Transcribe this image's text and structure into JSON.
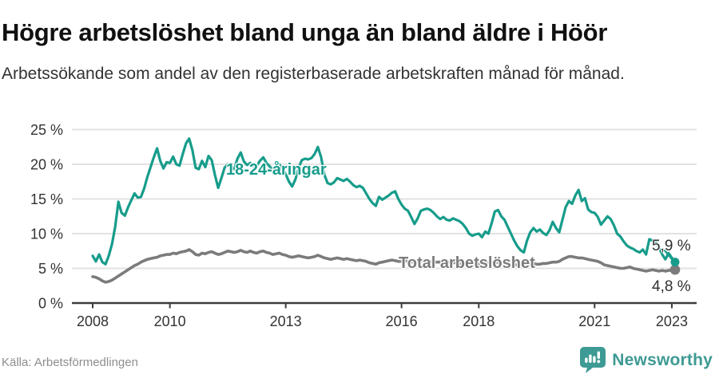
{
  "header": {
    "title": "Högre arbetslöshet bland unga än bland äldre i Höör",
    "subtitle": "Arbetssökande som andel av den registerbaserade arbetskraften månad för månad."
  },
  "chart_data": {
    "type": "line",
    "title": "Högre arbetslöshet bland unga än bland äldre i Höör",
    "xlabel": "",
    "ylabel": "",
    "unit": "%",
    "grid": true,
    "legend_position": "inline-labels",
    "ylim": [
      0,
      25
    ],
    "yticks": [
      {
        "value": 0,
        "label": "0 %"
      },
      {
        "value": 5,
        "label": "5 %"
      },
      {
        "value": 10,
        "label": "10 %"
      },
      {
        "value": 15,
        "label": "15 %"
      },
      {
        "value": 20,
        "label": "20 %"
      },
      {
        "value": 25,
        "label": "25 %"
      }
    ],
    "xticks": [
      {
        "year": 2008,
        "label": "2008"
      },
      {
        "year": 2010,
        "label": "2010"
      },
      {
        "year": 2013,
        "label": "2013"
      },
      {
        "year": 2016,
        "label": "2016"
      },
      {
        "year": 2018,
        "label": "2018"
      },
      {
        "year": 2021,
        "label": "2021"
      },
      {
        "year": 2023,
        "label": "2023"
      }
    ],
    "x_start_year": 2008,
    "x_step_months": 1,
    "series": [
      {
        "name": "18-24-åringar",
        "label_text": "18-24-åringar",
        "color": "#179C8B",
        "end_label": "5,9 %",
        "end_value": 5.9,
        "values": [
          6.8,
          6.0,
          7.0,
          5.9,
          5.6,
          6.8,
          8.5,
          11.0,
          14.6,
          13.0,
          12.6,
          13.8,
          14.8,
          15.8,
          15.2,
          15.3,
          16.5,
          18.2,
          19.6,
          21.0,
          22.3,
          20.5,
          19.4,
          20.3,
          20.2,
          21.1,
          20.0,
          19.8,
          21.5,
          23.0,
          23.7,
          22.0,
          19.5,
          19.3,
          20.5,
          19.6,
          21.2,
          20.6,
          18.5,
          16.6,
          18.0,
          19.5,
          20.0,
          19.6,
          19.3,
          20.8,
          21.7,
          20.4,
          19.9,
          20.2,
          19.6,
          19.8,
          20.5,
          21.0,
          20.2,
          19.7,
          19.2,
          19.5,
          20.0,
          19.3,
          18.6,
          17.5,
          16.8,
          17.8,
          19.5,
          20.6,
          20.8,
          20.7,
          20.9,
          21.5,
          22.5,
          21.0,
          18.5,
          17.3,
          17.1,
          17.4,
          18.0,
          17.8,
          17.6,
          17.9,
          17.5,
          17.0,
          16.7,
          16.9,
          16.6,
          15.8,
          15.0,
          14.4,
          14.0,
          15.3,
          14.9,
          15.2,
          15.5,
          15.9,
          16.1,
          15.0,
          14.2,
          13.6,
          13.3,
          12.4,
          11.4,
          12.2,
          13.3,
          13.5,
          13.6,
          13.4,
          13.0,
          12.5,
          12.1,
          12.4,
          12.0,
          11.9,
          12.2,
          12.0,
          11.8,
          11.4,
          10.8,
          10.0,
          9.7,
          9.9,
          10.0,
          9.5,
          10.3,
          10.0,
          11.5,
          13.2,
          13.4,
          12.5,
          12.0,
          11.0,
          10.0,
          9.0,
          8.2,
          7.6,
          7.3,
          9.0,
          10.2,
          10.8,
          10.3,
          10.6,
          10.1,
          9.8,
          10.5,
          11.7,
          10.8,
          10.2,
          12.0,
          13.8,
          14.7,
          14.3,
          15.5,
          16.3,
          14.7,
          15.1,
          13.5,
          13.1,
          13.0,
          12.4,
          11.3,
          11.9,
          12.5,
          12.1,
          11.2,
          10.0,
          9.6,
          8.9,
          8.3,
          8.0,
          7.8,
          7.5,
          7.3,
          7.7,
          7.0,
          9.2,
          9.0,
          8.8,
          8.0,
          7.0,
          6.3,
          7.2,
          6.5,
          5.9
        ]
      },
      {
        "name": "Total arbetslöshet",
        "label_text": "Total arbetslöshet",
        "color": "#7B7B7B",
        "end_label": "4,8 %",
        "end_value": 4.8,
        "values": [
          3.8,
          3.7,
          3.5,
          3.2,
          3.0,
          3.1,
          3.3,
          3.6,
          3.9,
          4.2,
          4.5,
          4.8,
          5.1,
          5.4,
          5.6,
          5.9,
          6.1,
          6.3,
          6.4,
          6.5,
          6.6,
          6.8,
          6.9,
          7.0,
          7.0,
          7.2,
          7.1,
          7.3,
          7.4,
          7.5,
          7.7,
          7.4,
          7.0,
          6.9,
          7.2,
          7.1,
          7.3,
          7.4,
          7.2,
          7.0,
          7.1,
          7.3,
          7.5,
          7.4,
          7.3,
          7.4,
          7.6,
          7.4,
          7.3,
          7.5,
          7.3,
          7.2,
          7.4,
          7.5,
          7.3,
          7.2,
          7.0,
          7.1,
          7.2,
          7.0,
          6.9,
          6.7,
          6.6,
          6.7,
          6.8,
          6.7,
          6.6,
          6.5,
          6.6,
          6.7,
          6.9,
          6.7,
          6.5,
          6.4,
          6.3,
          6.4,
          6.5,
          6.4,
          6.3,
          6.4,
          6.3,
          6.2,
          6.1,
          6.2,
          6.1,
          6.0,
          5.8,
          5.7,
          5.6,
          5.8,
          5.9,
          6.0,
          6.1,
          6.2,
          6.1,
          6.0,
          6.0,
          6.1,
          6.0,
          5.9,
          6.0,
          6.0,
          6.1,
          6.1,
          6.0,
          6.0,
          5.9,
          5.9,
          5.9,
          6.0,
          5.9,
          5.9,
          5.8,
          5.8,
          5.7,
          5.7,
          5.6,
          5.6,
          5.6,
          5.6,
          5.6,
          5.7,
          5.7,
          5.8,
          5.9,
          5.9,
          5.8,
          5.8,
          5.7,
          5.6,
          5.5,
          5.5,
          5.5,
          5.4,
          5.4,
          5.5,
          5.6,
          5.7,
          5.6,
          5.6,
          5.7,
          5.7,
          5.8,
          5.9,
          5.9,
          6.0,
          6.3,
          6.5,
          6.7,
          6.7,
          6.6,
          6.5,
          6.5,
          6.4,
          6.3,
          6.2,
          6.1,
          6.0,
          5.8,
          5.5,
          5.4,
          5.3,
          5.2,
          5.1,
          5.0,
          5.0,
          5.1,
          5.2,
          5.0,
          4.9,
          4.8,
          4.7,
          4.6,
          4.7,
          4.8,
          4.7,
          4.6,
          4.7,
          4.6,
          4.7,
          4.7,
          4.8
        ]
      }
    ],
    "colors": {
      "grid": "#E2E2E2",
      "axis": "#3C3C3C",
      "tick_text": "#333333"
    }
  },
  "footer": {
    "source": "Källa: Arbetsförmedlingen",
    "brand": "Newsworthy",
    "brand_color": "#3E9A94"
  }
}
